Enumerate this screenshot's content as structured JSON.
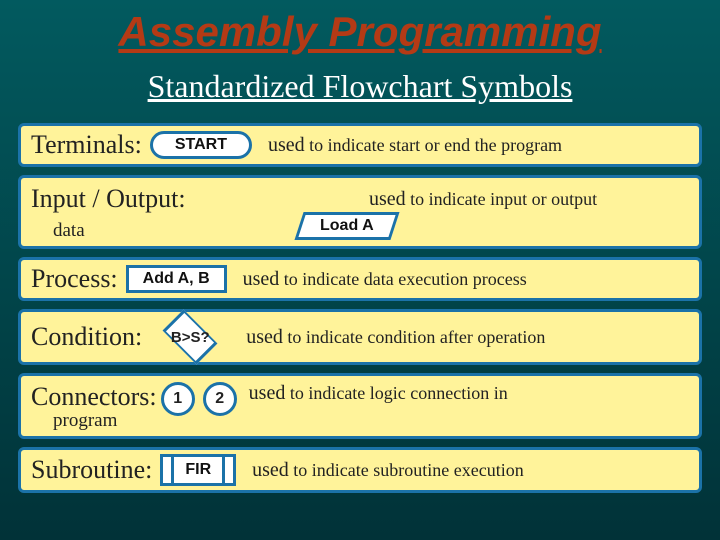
{
  "title": {
    "text": "Assembly Programming",
    "color": "#b43a15",
    "fontsize": 42
  },
  "subtitle": {
    "text": "Standardized Flowchart Symbols",
    "color": "#ffffff",
    "fontsize": 32
  },
  "background_gradient": [
    "#025a5f",
    "#013238"
  ],
  "row_style": {
    "bg": "#fff39a",
    "border": "#1b72a8",
    "border_width": 3,
    "radius": 6
  },
  "shape_style": {
    "fill": "#ffffff",
    "border": "#1b72a8",
    "border_width": 3,
    "text_color": "#111111"
  },
  "items": [
    {
      "kind": "terminal",
      "label": "Terminals:",
      "shape_text": "START",
      "desc_lead": "used",
      "desc_rest": " to indicate start or end the program"
    },
    {
      "kind": "io",
      "label": "Input / Output:",
      "sublabel": "data",
      "shape_text": "Load A",
      "desc_lead": "used",
      "desc_rest": " to indicate input or output"
    },
    {
      "kind": "process",
      "label": "Process:",
      "shape_text": "Add A, B",
      "desc_lead": "used",
      "desc_rest": " to indicate data execution process"
    },
    {
      "kind": "condition",
      "label": "Condition:",
      "shape_text": "B>S?",
      "desc_lead": "used",
      "desc_rest": " to indicate condition after operation"
    },
    {
      "kind": "connector",
      "label": "Connectors:",
      "sublabel": "program",
      "shape_text_1": "1",
      "shape_text_2": "2",
      "desc_lead": "used",
      "desc_rest": " to indicate logic connection in"
    },
    {
      "kind": "subroutine",
      "label": "Subroutine:",
      "shape_text": "FIR",
      "desc_lead": "used",
      "desc_rest": " to indicate subroutine execution"
    }
  ]
}
